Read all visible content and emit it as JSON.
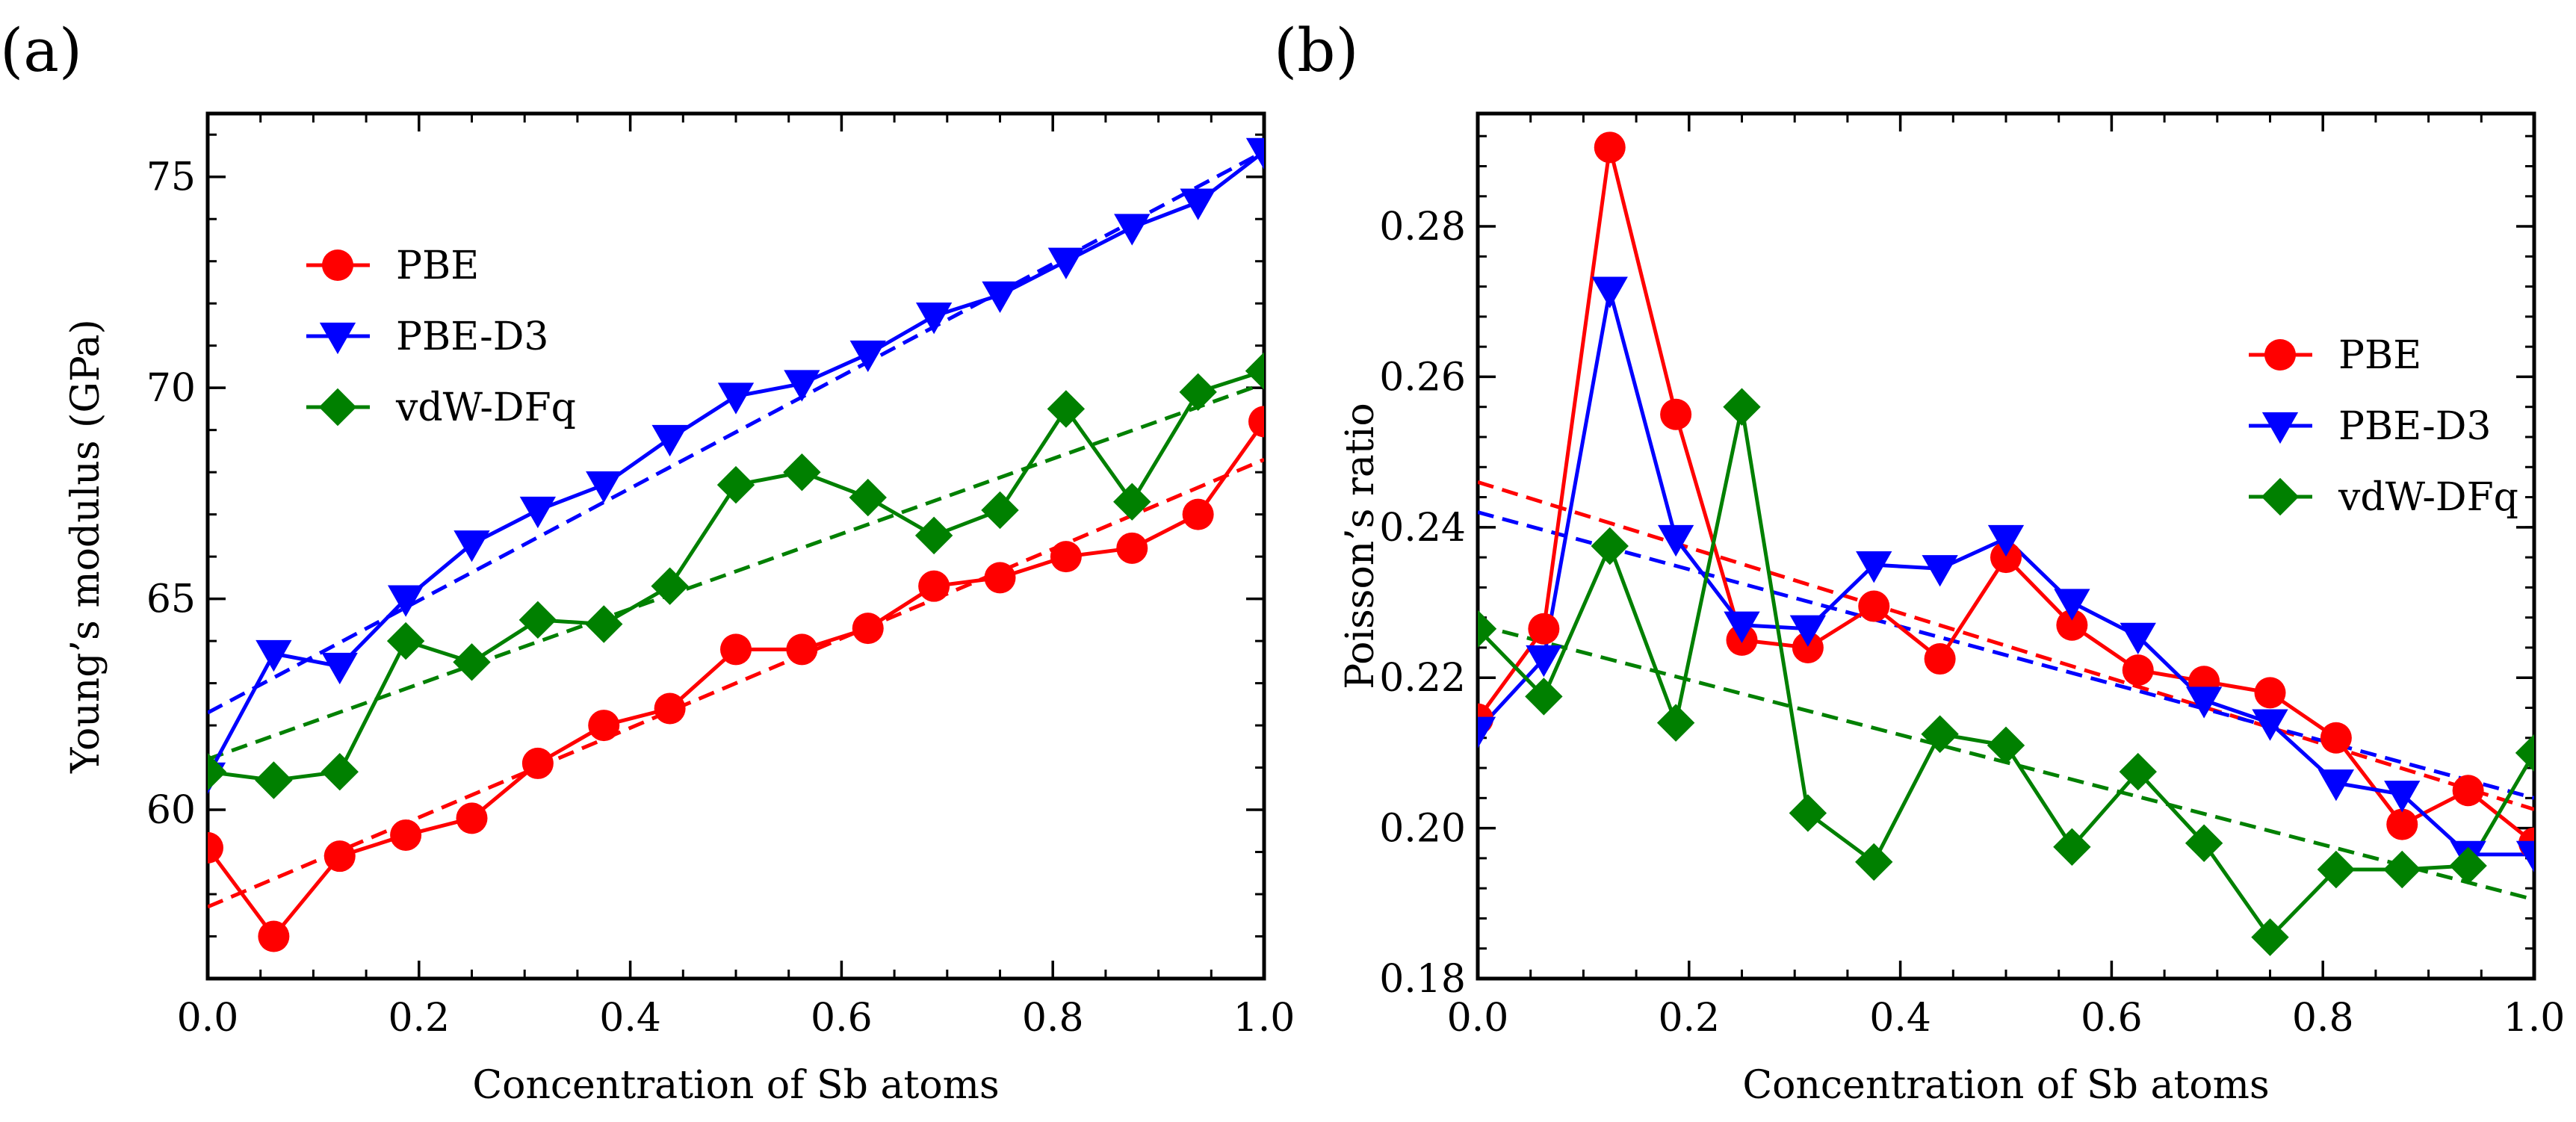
{
  "chart_data": [
    {
      "panel_label": "(a)",
      "type": "line",
      "xlabel": "Concentration of Sb atoms",
      "ylabel": "Young’s modulus (GPa)",
      "xlim": [
        0.0,
        1.0
      ],
      "ylim": [
        56.0,
        76.5
      ],
      "xticks": [
        0.0,
        0.2,
        0.4,
        0.6,
        0.8,
        1.0
      ],
      "xtick_labels": [
        "0.0",
        "0.2",
        "0.4",
        "0.6",
        "0.8",
        "1.0"
      ],
      "yticks": [
        60,
        65,
        70,
        75
      ],
      "ytick_labels": [
        "60",
        "65",
        "70",
        "75"
      ],
      "legend_position": "upper-left",
      "x": [
        0.0,
        0.0625,
        0.125,
        0.1875,
        0.25,
        0.3125,
        0.375,
        0.4375,
        0.5,
        0.5625,
        0.625,
        0.6875,
        0.75,
        0.8125,
        0.875,
        0.9375,
        1.0
      ],
      "series": [
        {
          "name": "PBE",
          "color": "#ff0000",
          "marker": "circle",
          "values": [
            59.1,
            57.0,
            58.9,
            59.4,
            59.8,
            61.1,
            62.0,
            62.4,
            63.8,
            63.8,
            64.3,
            65.3,
            65.5,
            66.0,
            66.2,
            67.0,
            69.2
          ],
          "fit": [
            57.7,
            68.3
          ]
        },
        {
          "name": "PBE-D3",
          "color": "#0000ff",
          "marker": "triangle-down",
          "values": [
            60.8,
            63.7,
            63.4,
            65.0,
            66.3,
            67.1,
            67.7,
            68.8,
            69.8,
            70.1,
            70.8,
            71.7,
            72.2,
            73.0,
            73.8,
            74.4,
            75.6
          ],
          "fit": [
            62.3,
            75.6
          ]
        },
        {
          "name": "vdW-DFq",
          "color": "#008000",
          "marker": "diamond",
          "values": [
            60.9,
            60.7,
            60.9,
            64.0,
            63.5,
            64.5,
            64.4,
            65.3,
            67.7,
            68.0,
            67.4,
            66.5,
            67.1,
            69.5,
            67.3,
            69.9,
            70.4
          ],
          "fit": [
            61.2,
            70.1
          ]
        }
      ]
    },
    {
      "panel_label": "(b)",
      "type": "line",
      "xlabel": "Concentration of Sb atoms",
      "ylabel": "Poisson’s ratio",
      "xlim": [
        0.0,
        1.0
      ],
      "ylim": [
        0.18,
        0.295
      ],
      "xticks": [
        0.0,
        0.2,
        0.4,
        0.6,
        0.8,
        1.0
      ],
      "xtick_labels": [
        "0.0",
        "0.2",
        "0.4",
        "0.6",
        "0.8",
        "1.0"
      ],
      "yticks": [
        0.18,
        0.2,
        0.22,
        0.24,
        0.26,
        0.28
      ],
      "ytick_labels": [
        "0.18",
        "0.20",
        "0.22",
        "0.24",
        "0.26",
        "0.28"
      ],
      "legend_position": "center-right",
      "x": [
        0.0,
        0.0625,
        0.125,
        0.1875,
        0.25,
        0.3125,
        0.375,
        0.4375,
        0.5,
        0.5625,
        0.625,
        0.6875,
        0.75,
        0.8125,
        0.875,
        0.9375,
        1.0
      ],
      "series": [
        {
          "name": "PBE",
          "color": "#ff0000",
          "marker": "circle",
          "values": [
            0.2145,
            0.2265,
            0.2905,
            0.255,
            0.225,
            0.224,
            0.2295,
            0.2225,
            0.236,
            0.227,
            0.221,
            0.2195,
            0.218,
            0.212,
            0.2005,
            0.205,
            0.198
          ],
          "fit": [
            0.246,
            0.2025
          ]
        },
        {
          "name": "PBE-D3",
          "color": "#0000ff",
          "marker": "triangle-down",
          "values": [
            0.213,
            0.2225,
            0.2715,
            0.2385,
            0.227,
            0.2265,
            0.235,
            0.2345,
            0.2385,
            0.23,
            0.2255,
            0.217,
            0.214,
            0.206,
            0.2045,
            0.1965,
            0.1965
          ],
          "fit": [
            0.242,
            0.204
          ]
        },
        {
          "name": "vdW-DFq",
          "color": "#008000",
          "marker": "diamond",
          "values": [
            0.2265,
            0.2175,
            0.2375,
            0.214,
            0.256,
            0.202,
            0.1955,
            0.2125,
            0.211,
            0.1975,
            0.2075,
            0.198,
            0.1855,
            0.1945,
            0.1945,
            0.195,
            0.21
          ],
          "fit": [
            0.227,
            0.1905
          ]
        }
      ]
    }
  ]
}
